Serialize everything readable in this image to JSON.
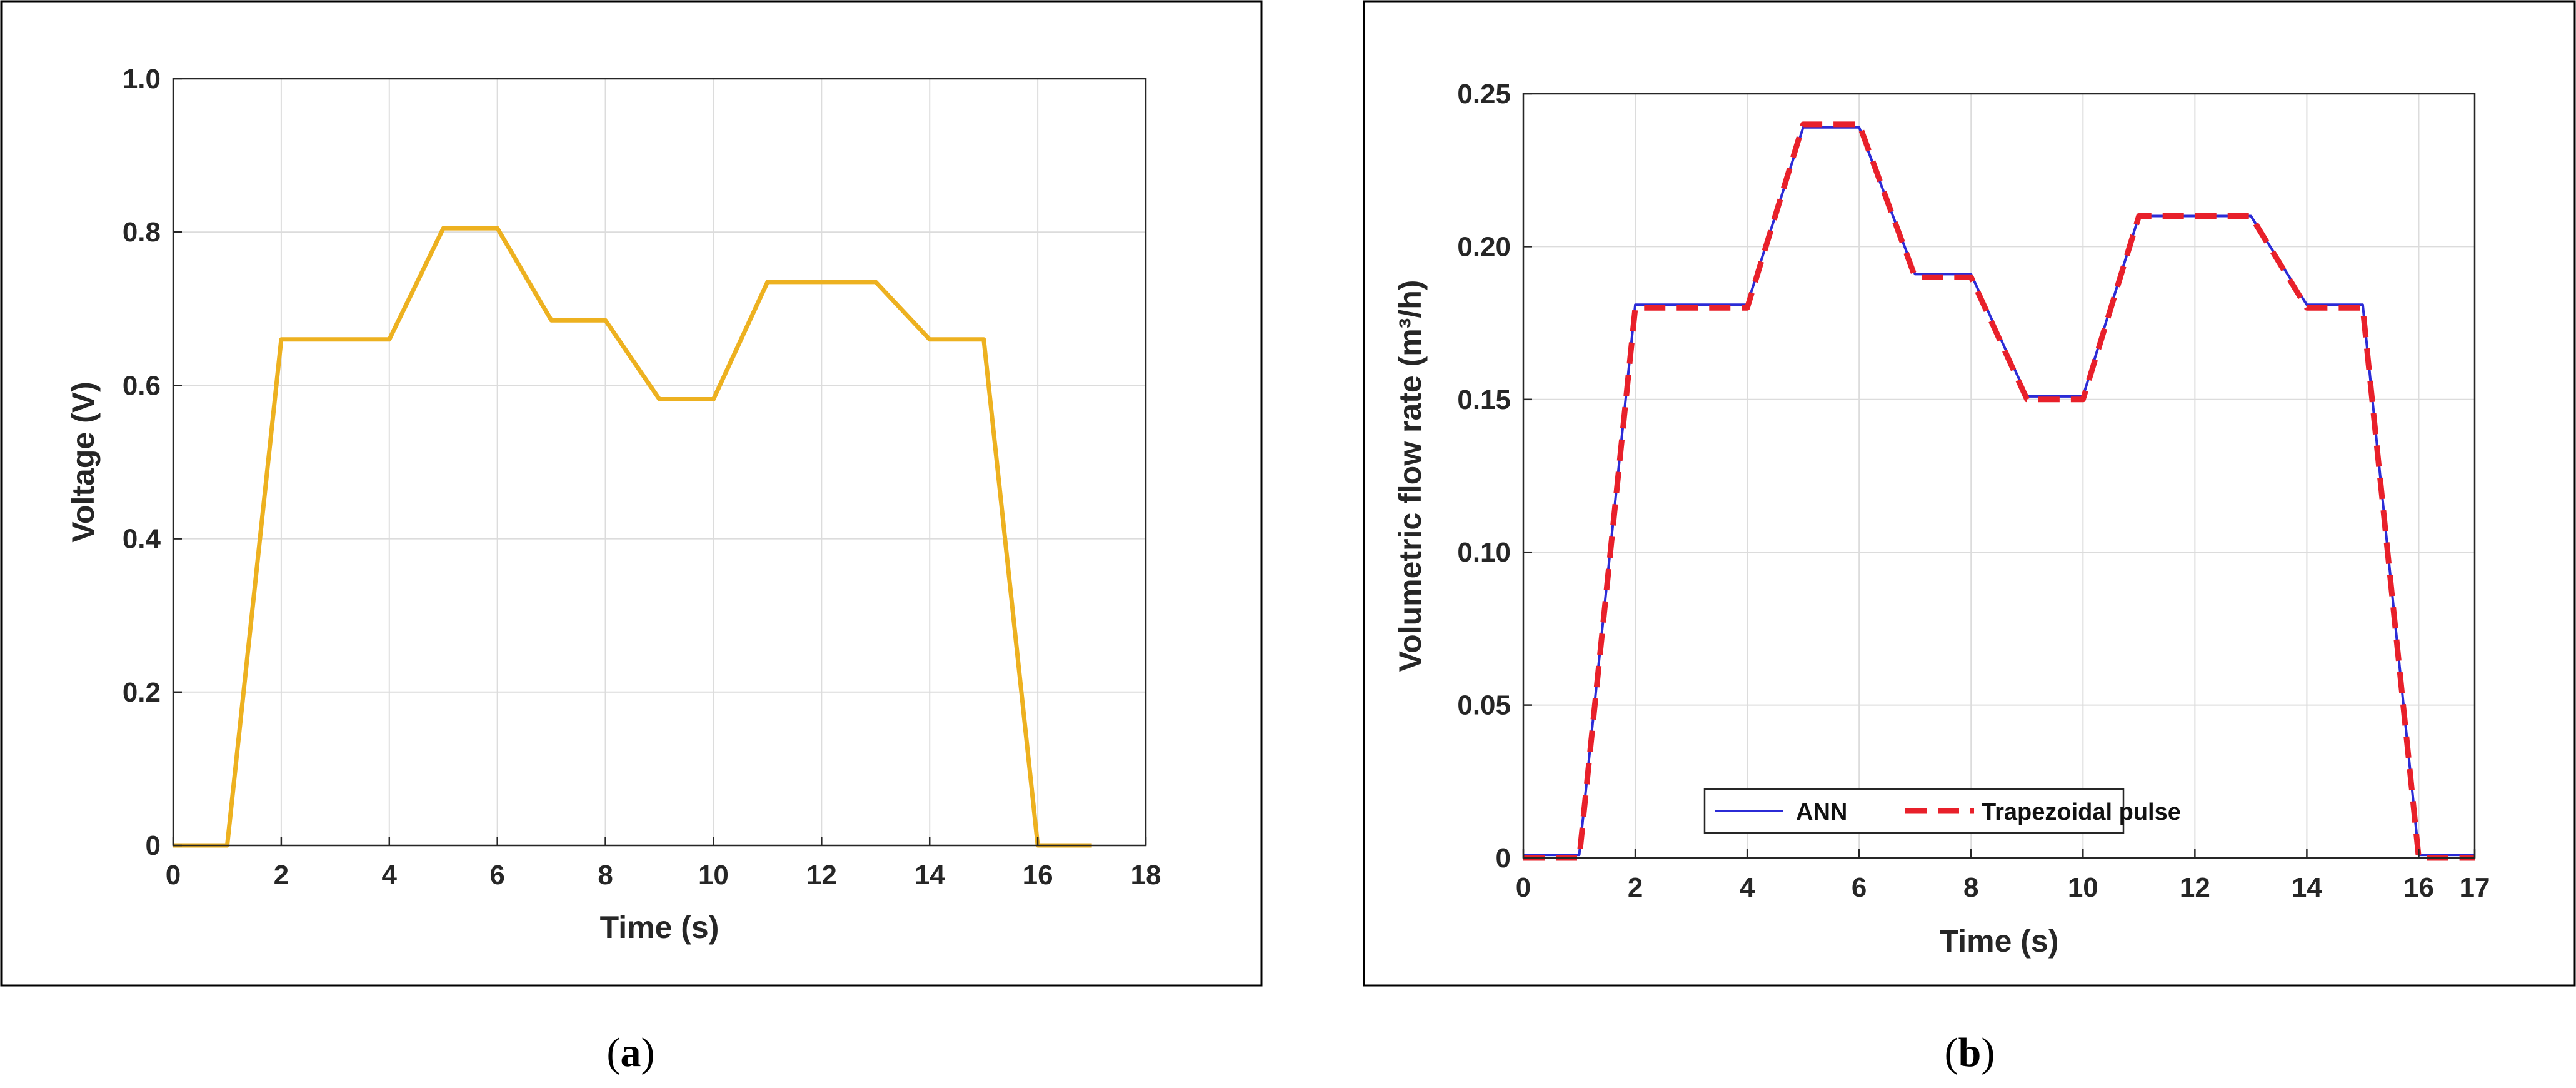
{
  "chart_data": [
    {
      "type": "line",
      "panel_label": "a",
      "xlabel": "Time (s)",
      "ylabel": "Voltage (V)",
      "xlim": [
        0,
        18
      ],
      "ylim": [
        0,
        1.0
      ],
      "xticks": [
        "0",
        "2",
        "4",
        "6",
        "8",
        "10",
        "12",
        "14",
        "16",
        "18"
      ],
      "yticks": [
        "0",
        "0.2",
        "0.4",
        "0.6",
        "0.8",
        "1.0"
      ],
      "grid": true,
      "series": [
        {
          "color": "#EDB120",
          "x": [
            0,
            1,
            2,
            4,
            5,
            6,
            7,
            8,
            9,
            10,
            11,
            13,
            14,
            15,
            16,
            17
          ],
          "y": [
            0,
            0,
            0.66,
            0.66,
            0.805,
            0.805,
            0.685,
            0.685,
            0.582,
            0.582,
            0.735,
            0.735,
            0.66,
            0.66,
            0,
            0
          ]
        }
      ]
    },
    {
      "type": "line",
      "panel_label": "b",
      "xlabel": "Time (s)",
      "ylabel": "Volumetric flow rate (m³/h)",
      "xlim": [
        0,
        17
      ],
      "ylim": [
        0,
        0.25
      ],
      "xticks": [
        "0",
        "2",
        "4",
        "6",
        "8",
        "10",
        "12",
        "14",
        "16",
        "17"
      ],
      "yticks": [
        "0",
        "0.05",
        "0.10",
        "0.15",
        "0.20",
        "0.25"
      ],
      "grid": true,
      "legend_position": "bottom-center",
      "series": [
        {
          "name": "ANN",
          "color": "#2B2BD6",
          "style": "solid",
          "x": [
            0,
            1,
            2,
            4,
            5,
            6,
            7,
            8,
            9,
            10,
            11,
            13,
            14,
            15,
            16,
            17
          ],
          "y": [
            0.001,
            0.001,
            0.181,
            0.181,
            0.239,
            0.239,
            0.191,
            0.191,
            0.151,
            0.151,
            0.21,
            0.21,
            0.181,
            0.181,
            0.001,
            0.001
          ]
        },
        {
          "name": "Trapezoidal pulse",
          "color": "#E8202A",
          "style": "dashed",
          "x": [
            0,
            1,
            2,
            4,
            5,
            6,
            7,
            8,
            9,
            10,
            11,
            13,
            14,
            15,
            16,
            17
          ],
          "y": [
            0,
            0,
            0.18,
            0.18,
            0.24,
            0.24,
            0.19,
            0.19,
            0.15,
            0.15,
            0.21,
            0.21,
            0.18,
            0.18,
            0,
            0
          ]
        }
      ]
    }
  ],
  "captions": [
    {
      "open": "(",
      "letter": "a",
      "close": ")"
    },
    {
      "open": "(",
      "letter": "b",
      "close": ")"
    }
  ]
}
